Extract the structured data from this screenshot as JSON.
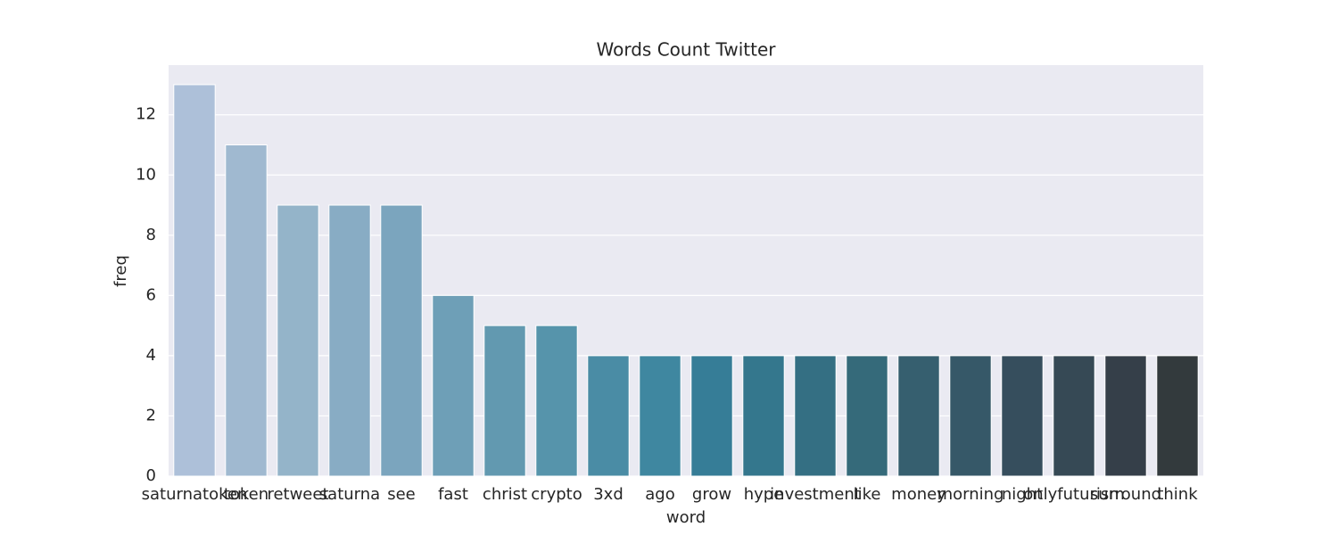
{
  "chart_data": {
    "type": "bar",
    "title": "Words Count Twitter",
    "x_label": "word",
    "y_label": "freq",
    "categories": [
      "saturnatoken",
      "token",
      "retweet",
      "saturna",
      "see",
      "fast",
      "christ",
      "crypto",
      "3xd",
      "ago",
      "grow",
      "hype",
      "investment",
      "like",
      "money",
      "morning",
      "night",
      "onlyfuturism",
      "surround",
      "think"
    ],
    "values": [
      13,
      11,
      9,
      9,
      9,
      6,
      5,
      5,
      4,
      4,
      4,
      4,
      4,
      4,
      4,
      4,
      4,
      4,
      4,
      4
    ],
    "colors": [
      "#adc0d9",
      "#a0b9d0",
      "#94b4c9",
      "#88acc4",
      "#7ba5be",
      "#6e9fb7",
      "#6299b0",
      "#5694ab",
      "#4a8ca5",
      "#3f87a0",
      "#367d97",
      "#34778d",
      "#346f83",
      "#356a7a",
      "#365f6f",
      "#365868",
      "#364e5d",
      "#364955",
      "#353f49",
      "#333a3d"
    ],
    "ylim": [
      0,
      13.65
    ],
    "yticks": [
      0,
      2,
      4,
      6,
      8,
      10,
      12
    ],
    "grid": true
  }
}
